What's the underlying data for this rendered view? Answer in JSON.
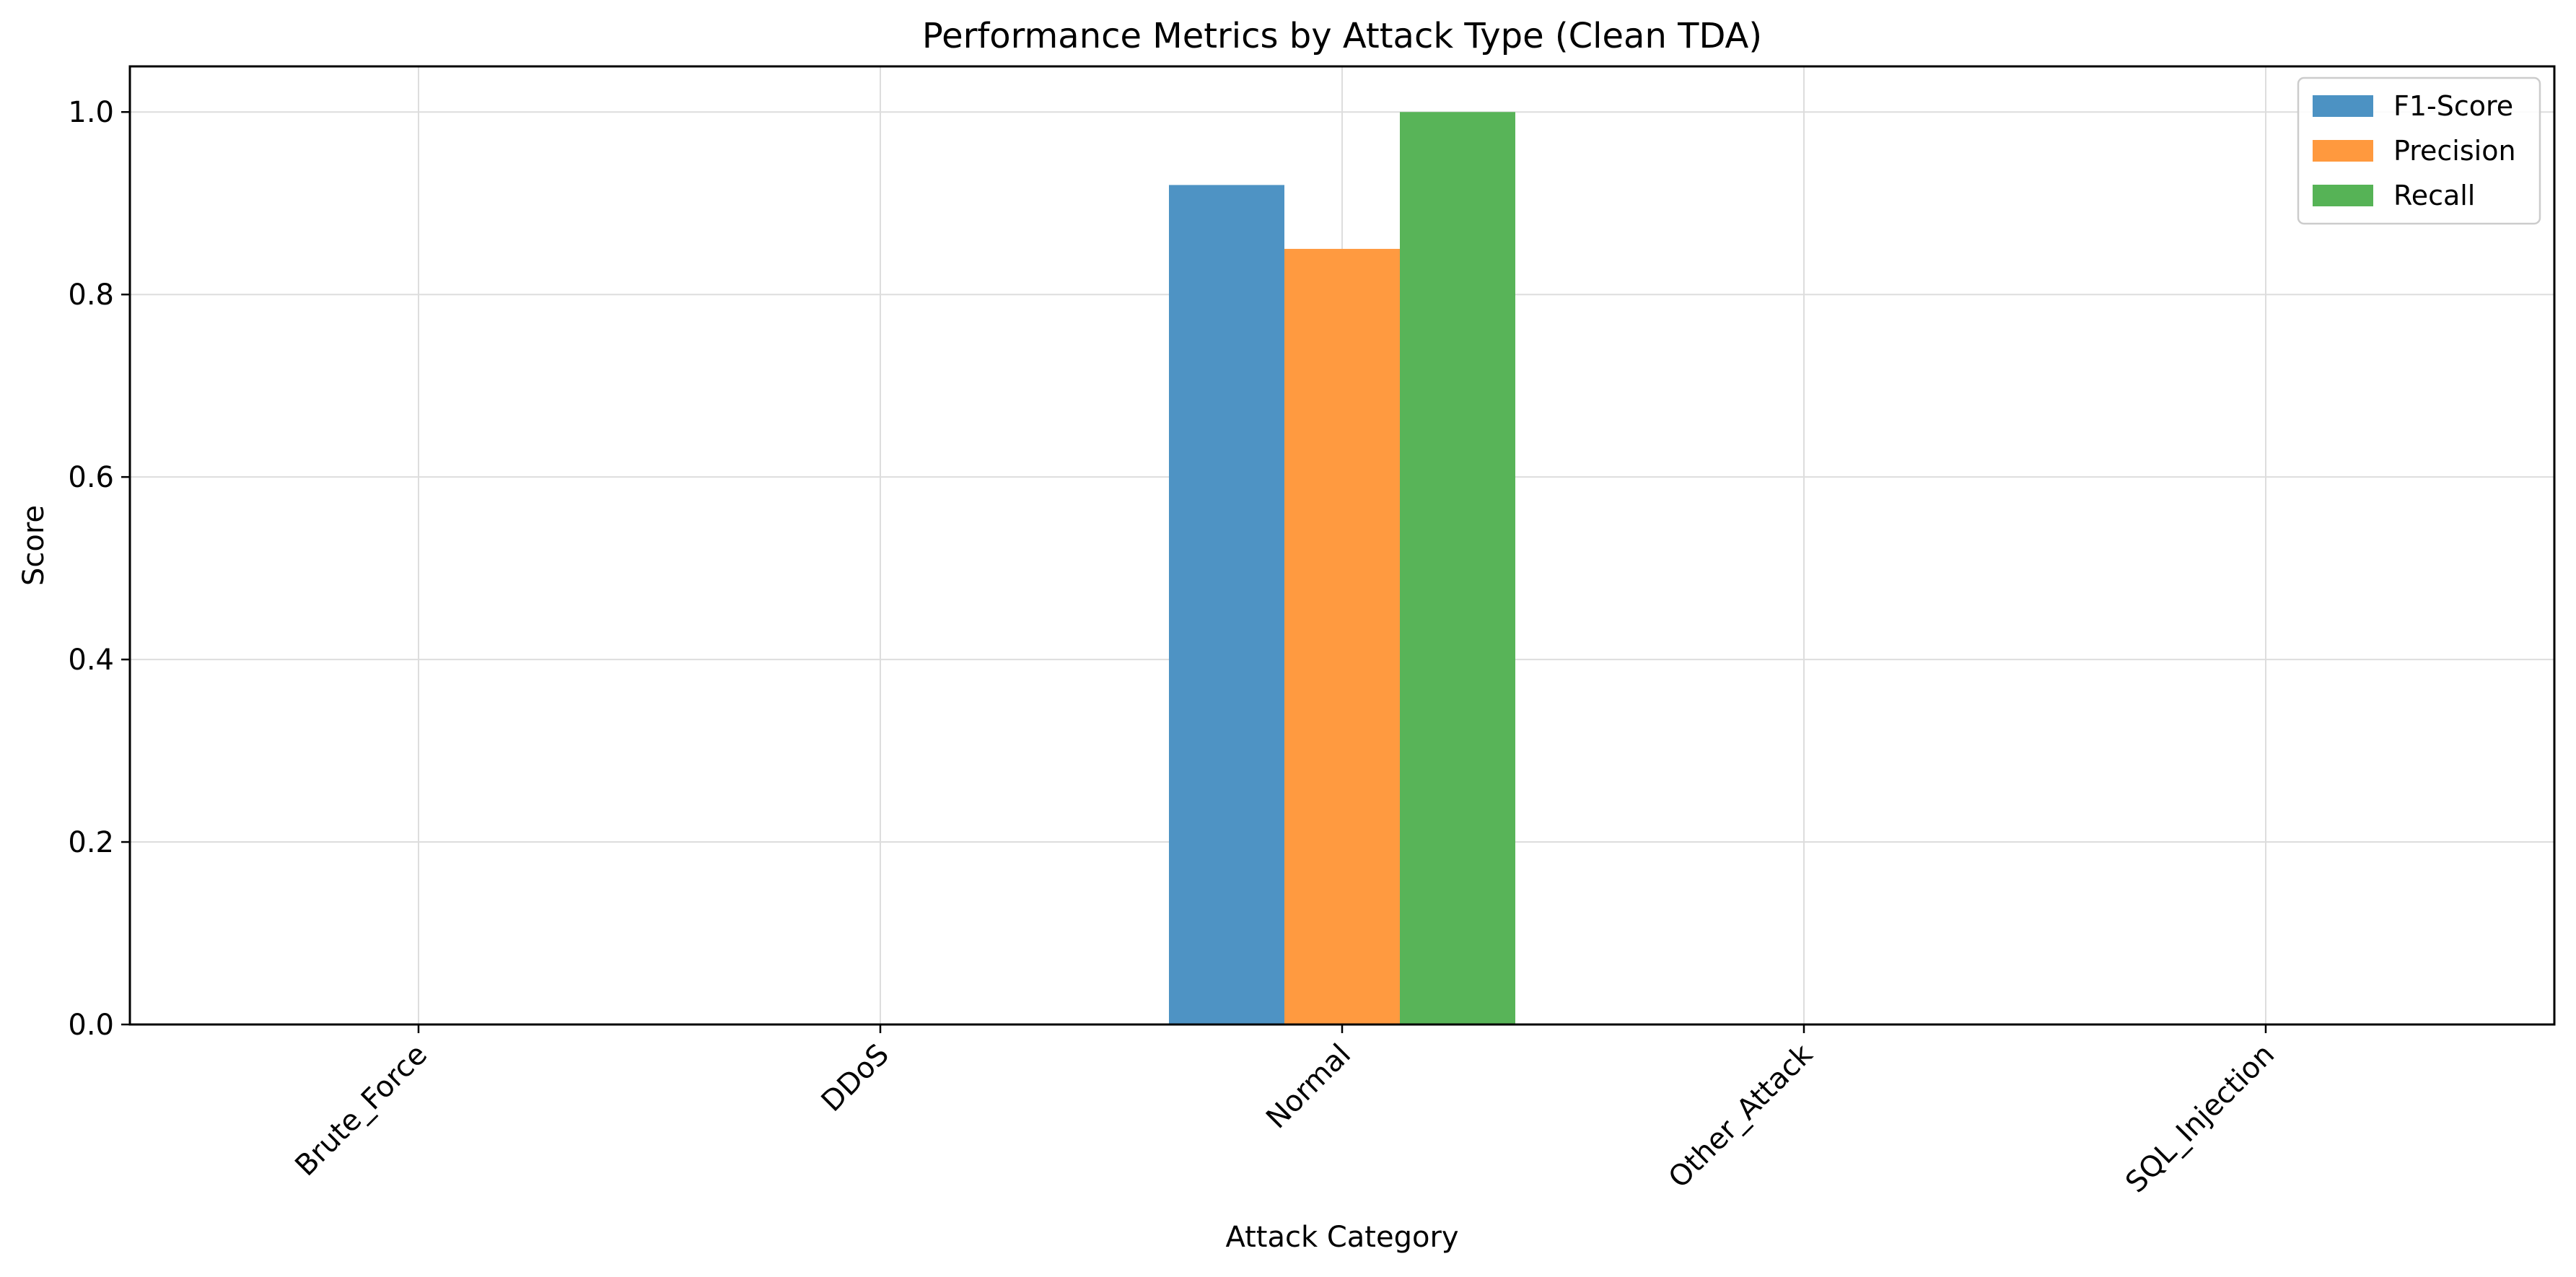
{
  "chart_data": {
    "type": "bar",
    "title": "Performance Metrics by Attack Type (Clean TDA)",
    "xlabel": "Attack Category",
    "ylabel": "Score",
    "categories": [
      "Brute_Force",
      "DDoS",
      "Normal",
      "Other_Attack",
      "SQL_Injection"
    ],
    "series": [
      {
        "name": "F1-Score",
        "values": [
          0,
          0,
          0.92,
          0,
          0
        ],
        "color": "#4c92c3"
      },
      {
        "name": "Precision",
        "values": [
          0,
          0,
          0.85,
          0,
          0
        ],
        "color": "#ff993e"
      },
      {
        "name": "Recall",
        "values": [
          0,
          0,
          1.0,
          0,
          0
        ],
        "color": "#56b356"
      }
    ],
    "ylim": [
      0,
      1.05
    ],
    "yticks": [
      "0.0",
      "0.2",
      "0.4",
      "0.6",
      "0.8",
      "1.0"
    ],
    "grid": true,
    "legend_position": "top-right"
  }
}
